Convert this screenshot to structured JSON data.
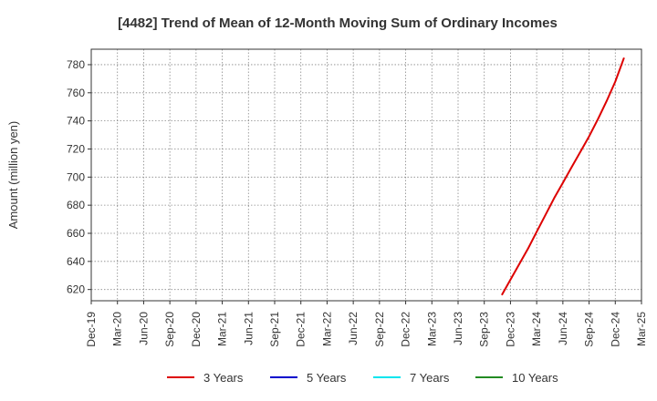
{
  "chart_data": {
    "type": "line",
    "title": "[4482]  Trend of Mean of 12-Month Moving Sum of Ordinary Incomes",
    "ylabel": "Amount (million yen)",
    "xlabel": "",
    "x_ticks": [
      "Dec-19",
      "Mar-20",
      "Jun-20",
      "Sep-20",
      "Dec-20",
      "Mar-21",
      "Jun-21",
      "Sep-21",
      "Dec-21",
      "Mar-22",
      "Jun-22",
      "Sep-22",
      "Dec-22",
      "Mar-23",
      "Jun-23",
      "Sep-23",
      "Dec-23",
      "Mar-24",
      "Jun-24",
      "Sep-24",
      "Dec-24",
      "Mar-25"
    ],
    "y_ticks": [
      620,
      640,
      660,
      680,
      700,
      720,
      740,
      760,
      780
    ],
    "ylim": [
      612,
      791
    ],
    "grid": true,
    "legend_position": "bottom",
    "series": [
      {
        "name": "3 Years",
        "color": "#dd0000",
        "points": [
          {
            "x": "Nov-23",
            "y": 616
          },
          {
            "x": "Dec-23",
            "y": 627
          },
          {
            "x": "Jan-24",
            "y": 638
          },
          {
            "x": "Feb-24",
            "y": 649
          },
          {
            "x": "Mar-24",
            "y": 661
          },
          {
            "x": "Apr-24",
            "y": 673
          },
          {
            "x": "May-24",
            "y": 685
          },
          {
            "x": "Jun-24",
            "y": 696
          },
          {
            "x": "Jul-24",
            "y": 707
          },
          {
            "x": "Aug-24",
            "y": 718
          },
          {
            "x": "Sep-24",
            "y": 729
          },
          {
            "x": "Oct-24",
            "y": 741
          },
          {
            "x": "Nov-24",
            "y": 754
          },
          {
            "x": "Dec-24",
            "y": 768
          },
          {
            "x": "Jan-25",
            "y": 785
          }
        ]
      },
      {
        "name": "5 Years",
        "color": "#0000cc",
        "points": []
      },
      {
        "name": "7 Years",
        "color": "#00e5ee",
        "points": []
      },
      {
        "name": "10 Years",
        "color": "#228b22",
        "points": []
      }
    ]
  }
}
